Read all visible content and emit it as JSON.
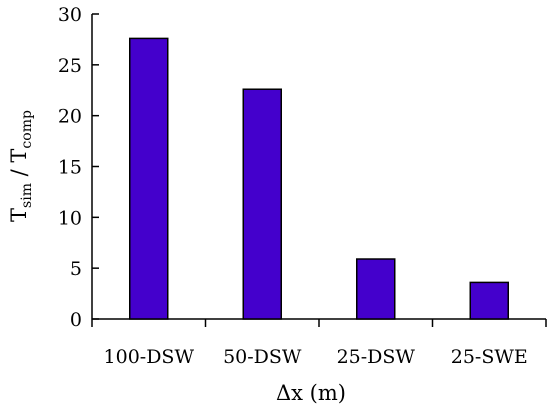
{
  "chart_data": {
    "type": "bar",
    "categories": [
      "100-DSW",
      "50-DSW",
      "25-DSW",
      "25-SWE"
    ],
    "values": [
      27.6,
      22.6,
      5.9,
      3.6
    ],
    "xlabel": "Δx (m)",
    "ylabel": {
      "base1": "T",
      "sub1": "sim",
      "sep": " / ",
      "base2": "T",
      "sub2": "comp"
    },
    "ylim": [
      0,
      30
    ],
    "yticks": [
      "0",
      "5",
      "10",
      "15",
      "20",
      "25",
      "30"
    ],
    "grid": false,
    "legend": "none",
    "bar_color": "#4400cc",
    "bar_edge_color": "#000000"
  }
}
